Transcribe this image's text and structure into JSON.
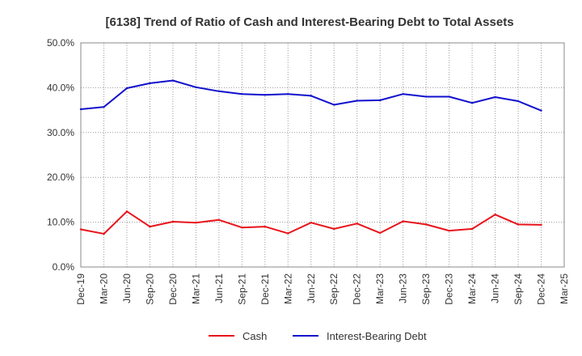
{
  "chart_data": {
    "type": "line",
    "title": "[6138]  Trend of Ratio of Cash and Interest-Bearing Debt to Total Assets",
    "xlabel": "",
    "ylabel": "",
    "ylim": [
      0,
      50
    ],
    "y_ticks": [
      "0.0%",
      "10.0%",
      "20.0%",
      "30.0%",
      "40.0%",
      "50.0%"
    ],
    "categories": [
      "Dec-19",
      "Mar-20",
      "Jun-20",
      "Sep-20",
      "Dec-20",
      "Mar-21",
      "Jun-21",
      "Sep-21",
      "Dec-21",
      "Mar-22",
      "Jun-22",
      "Sep-22",
      "Dec-22",
      "Mar-23",
      "Jun-23",
      "Sep-23",
      "Dec-23",
      "Mar-24",
      "Jun-24",
      "Sep-24",
      "Dec-24",
      "Mar-25"
    ],
    "grid": true,
    "legend_position": "bottom",
    "series": [
      {
        "name": "Cash",
        "color": "#e8141b",
        "values": [
          8.4,
          7.4,
          12.4,
          9.0,
          10.1,
          9.9,
          10.5,
          8.8,
          9.0,
          7.5,
          9.9,
          8.5,
          9.7,
          7.6,
          10.2,
          9.5,
          8.1,
          8.5,
          11.7,
          9.5,
          9.4,
          null
        ]
      },
      {
        "name": "Interest-Bearing Debt",
        "color": "#1010cc",
        "values": [
          35.2,
          35.7,
          39.9,
          41.0,
          41.6,
          40.1,
          39.2,
          38.6,
          38.4,
          38.6,
          38.2,
          36.2,
          37.1,
          37.2,
          38.6,
          38.0,
          38.0,
          36.6,
          37.9,
          37.0,
          34.9,
          null
        ]
      }
    ]
  }
}
